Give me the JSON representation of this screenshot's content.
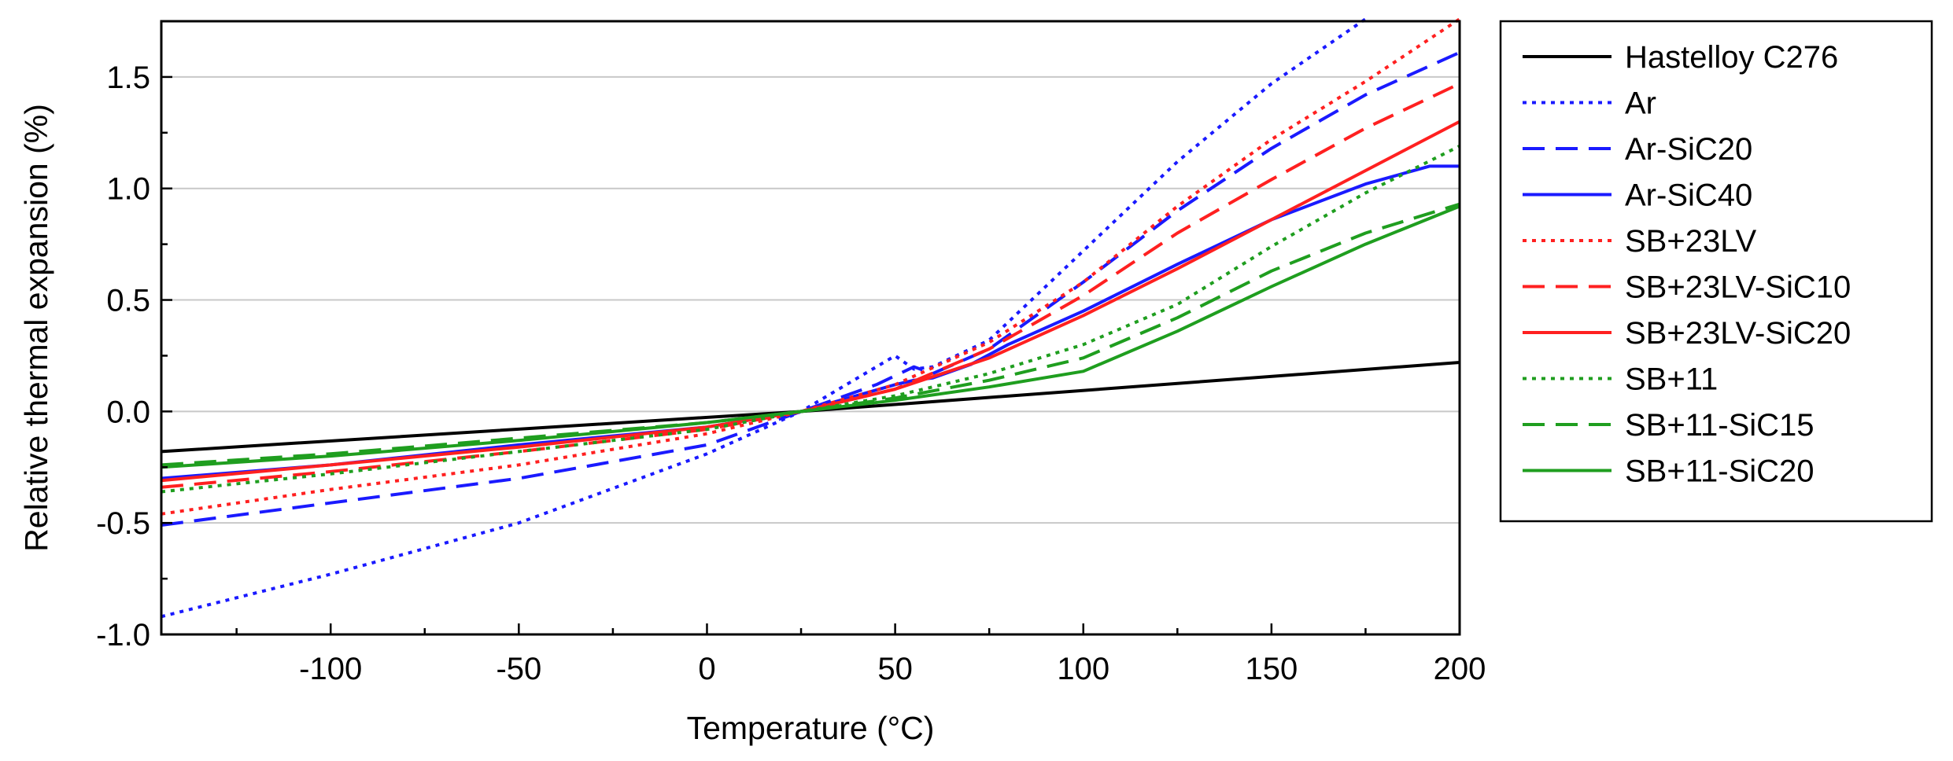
{
  "chart_data": {
    "type": "line",
    "title": "",
    "xlabel": "Temperature (°C)",
    "ylabel": "Relative thermal expansion (%)",
    "xlim": [
      -145,
      200
    ],
    "ylim": [
      -1.0,
      1.75
    ],
    "xticks": [
      -100,
      -50,
      0,
      50,
      100,
      150,
      200
    ],
    "xtick_labels": [
      "-100",
      "-50",
      "0",
      "50",
      "100",
      "150",
      "200"
    ],
    "yticks": [
      -1.0,
      -0.5,
      0.0,
      0.5,
      1.0,
      1.5
    ],
    "ytick_labels": [
      "-1.0",
      "-0.5",
      "0.0",
      "0.5",
      "1.0",
      "1.5"
    ],
    "grid": "horizontal",
    "legend": "outside-right",
    "series": [
      {
        "name": "Hastelloy C276",
        "color": "#000000",
        "dash": "solid",
        "x": [
          -145,
          25,
          200
        ],
        "y": [
          -0.18,
          0.0,
          0.22
        ]
      },
      {
        "name": "Ar",
        "color": "#1a1aff",
        "dash": "dotted",
        "x": [
          -145,
          -100,
          -50,
          0,
          25,
          40,
          50,
          55,
          60,
          75,
          100,
          125,
          150,
          175
        ],
        "y": [
          -0.92,
          -0.73,
          -0.5,
          -0.19,
          0.0,
          0.15,
          0.25,
          0.19,
          0.2,
          0.32,
          0.72,
          1.12,
          1.47,
          1.76
        ]
      },
      {
        "name": "Ar-SiC20",
        "color": "#1a1aff",
        "dash": "dashed",
        "x": [
          -145,
          -100,
          -50,
          0,
          25,
          45,
          55,
          60,
          75,
          100,
          125,
          150,
          175,
          200
        ],
        "y": [
          -0.51,
          -0.41,
          -0.3,
          -0.15,
          0.0,
          0.12,
          0.2,
          0.17,
          0.28,
          0.58,
          0.9,
          1.18,
          1.42,
          1.61
        ]
      },
      {
        "name": "Ar-SiC40",
        "color": "#1a1aff",
        "dash": "solid",
        "x": [
          -145,
          -100,
          -50,
          0,
          25,
          50,
          55,
          60,
          70,
          80,
          100,
          125,
          150,
          175,
          192,
          200
        ],
        "y": [
          -0.3,
          -0.24,
          -0.15,
          -0.07,
          0.0,
          0.12,
          0.14,
          0.15,
          0.21,
          0.3,
          0.45,
          0.66,
          0.86,
          1.02,
          1.1,
          1.1
        ]
      },
      {
        "name": "SB+23LV",
        "color": "#ff2020",
        "dash": "dotted",
        "x": [
          -145,
          -100,
          -50,
          0,
          25,
          50,
          75,
          100,
          125,
          150,
          175,
          200
        ],
        "y": [
          -0.46,
          -0.35,
          -0.24,
          -0.1,
          0.0,
          0.12,
          0.31,
          0.58,
          0.92,
          1.22,
          1.48,
          1.76
        ]
      },
      {
        "name": "SB+23LV-SiC10",
        "color": "#ff2020",
        "dash": "dashed",
        "x": [
          -145,
          -100,
          -50,
          0,
          25,
          50,
          75,
          100,
          125,
          150,
          175,
          200
        ],
        "y": [
          -0.34,
          -0.27,
          -0.18,
          -0.08,
          0.0,
          0.1,
          0.28,
          0.52,
          0.8,
          1.04,
          1.27,
          1.47
        ]
      },
      {
        "name": "SB+23LV-SiC20",
        "color": "#ff2020",
        "dash": "solid",
        "x": [
          -145,
          -100,
          -50,
          0,
          25,
          50,
          75,
          100,
          125,
          150,
          175,
          200
        ],
        "y": [
          -0.31,
          -0.24,
          -0.16,
          -0.07,
          0.0,
          0.1,
          0.24,
          0.43,
          0.64,
          0.86,
          1.08,
          1.3
        ]
      },
      {
        "name": "SB+11",
        "color": "#1f9e1f",
        "dash": "dotted",
        "x": [
          -145,
          -100,
          -50,
          0,
          25,
          50,
          75,
          100,
          125,
          150,
          175,
          200
        ],
        "y": [
          -0.36,
          -0.28,
          -0.18,
          -0.08,
          0.0,
          0.07,
          0.17,
          0.3,
          0.48,
          0.74,
          0.98,
          1.19
        ]
      },
      {
        "name": "SB+11-SiC15",
        "color": "#1f9e1f",
        "dash": "dashed",
        "x": [
          -145,
          -100,
          -50,
          0,
          25,
          50,
          75,
          100,
          125,
          150,
          175,
          200
        ],
        "y": [
          -0.24,
          -0.19,
          -0.12,
          -0.05,
          0.0,
          0.06,
          0.14,
          0.24,
          0.42,
          0.63,
          0.8,
          0.93
        ]
      },
      {
        "name": "SB+11-SiC20",
        "color": "#1f9e1f",
        "dash": "solid",
        "x": [
          -145,
          -100,
          -50,
          0,
          25,
          50,
          75,
          100,
          125,
          150,
          175,
          200
        ],
        "y": [
          -0.25,
          -0.2,
          -0.13,
          -0.05,
          0.0,
          0.05,
          0.11,
          0.18,
          0.36,
          0.56,
          0.75,
          0.92
        ]
      }
    ]
  }
}
